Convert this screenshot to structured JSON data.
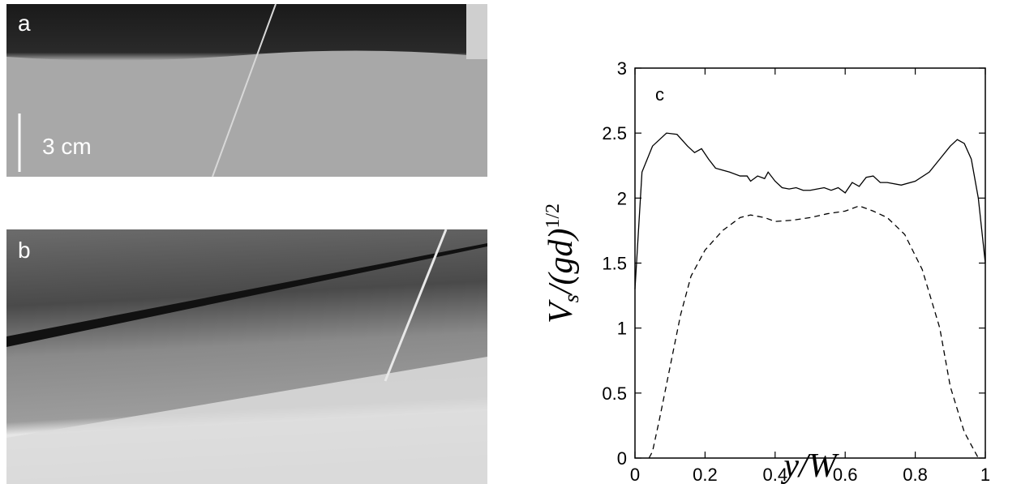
{
  "panels": {
    "a": {
      "label": "a",
      "scale_bar": "3 cm"
    },
    "b": {
      "label": "b"
    }
  },
  "chart_data": {
    "type": "line",
    "panel_label": "c",
    "xlabel": "y/W",
    "ylabel": {
      "main": "V",
      "sub": "s",
      "rest": "/(gd)",
      "sup": "1/2"
    },
    "xlim": [
      0,
      1
    ],
    "ylim": [
      0,
      3
    ],
    "xticks": [
      0,
      0.2,
      0.4,
      0.6,
      0.8,
      1
    ],
    "yticks": [
      0,
      0.5,
      1,
      1.5,
      2,
      2.5,
      3
    ],
    "series": [
      {
        "style": "solid",
        "color": "#000000",
        "x": [
          0,
          0.02,
          0.05,
          0.09,
          0.12,
          0.15,
          0.17,
          0.19,
          0.21,
          0.23,
          0.27,
          0.3,
          0.32,
          0.33,
          0.35,
          0.37,
          0.38,
          0.4,
          0.42,
          0.44,
          0.46,
          0.48,
          0.5,
          0.52,
          0.54,
          0.56,
          0.58,
          0.6,
          0.62,
          0.64,
          0.66,
          0.68,
          0.7,
          0.72,
          0.76,
          0.8,
          0.84,
          0.87,
          0.9,
          0.92,
          0.94,
          0.96,
          0.98,
          1
        ],
        "values": [
          1.3,
          2.2,
          2.4,
          2.5,
          2.49,
          2.4,
          2.35,
          2.38,
          2.3,
          2.23,
          2.2,
          2.17,
          2.17,
          2.13,
          2.17,
          2.15,
          2.2,
          2.13,
          2.08,
          2.07,
          2.08,
          2.06,
          2.06,
          2.07,
          2.08,
          2.06,
          2.08,
          2.04,
          2.12,
          2.09,
          2.16,
          2.17,
          2.12,
          2.12,
          2.1,
          2.13,
          2.2,
          2.3,
          2.4,
          2.45,
          2.42,
          2.3,
          2.0,
          1.5
        ]
      },
      {
        "style": "dashed",
        "color": "#000000",
        "x": [
          0.04,
          0.05,
          0.07,
          0.1,
          0.13,
          0.16,
          0.2,
          0.25,
          0.3,
          0.33,
          0.37,
          0.4,
          0.45,
          0.5,
          0.55,
          0.6,
          0.64,
          0.68,
          0.72,
          0.77,
          0.82,
          0.87,
          0.9,
          0.94,
          0.97,
          0.98
        ],
        "values": [
          0,
          0.05,
          0.3,
          0.7,
          1.1,
          1.4,
          1.6,
          1.75,
          1.85,
          1.87,
          1.85,
          1.82,
          1.83,
          1.85,
          1.88,
          1.9,
          1.94,
          1.9,
          1.85,
          1.72,
          1.45,
          1.0,
          0.55,
          0.2,
          0.05,
          0
        ]
      }
    ]
  }
}
